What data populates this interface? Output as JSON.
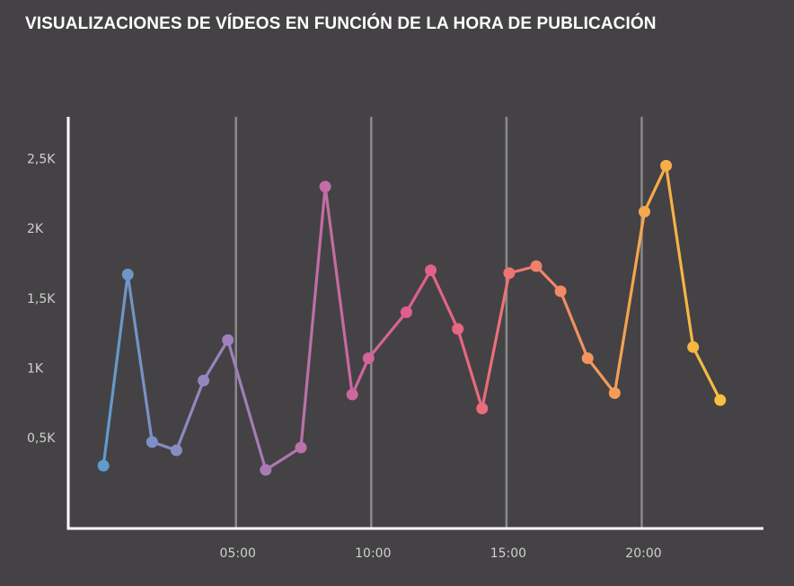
{
  "chart_data": {
    "type": "line",
    "title": "VISUALIZACIONES DE VÍDEOS EN FUNCIÓN DE LA HORA DE PUBLICACIÓN",
    "xlabel": "",
    "ylabel": "",
    "x_tick_labels": [
      {
        "label": "05:00",
        "value": 5
      },
      {
        "label": "10:00",
        "value": 10
      },
      {
        "label": "15:00",
        "value": 15
      },
      {
        "label": "20:00",
        "value": 20
      }
    ],
    "y_tick_labels": [
      {
        "label": "0,5K",
        "value": 500
      },
      {
        "label": "1K",
        "value": 1000
      },
      {
        "label": "1,5K",
        "value": 1500
      },
      {
        "label": "2K",
        "value": 2000
      },
      {
        "label": "2,5K",
        "value": 2500
      }
    ],
    "xlim": [
      -1.2,
      24.5
    ],
    "ylim": [
      -150,
      2800
    ],
    "x": [
      0.1,
      1.0,
      1.9,
      2.8,
      3.8,
      4.7,
      6.1,
      7.4,
      8.3,
      9.3,
      9.9,
      11.3,
      12.2,
      13.2,
      14.1,
      15.1,
      16.1,
      17.0,
      18.0,
      19.0,
      20.1,
      20.9,
      21.9,
      22.9
    ],
    "values": [
      300,
      1670,
      470,
      410,
      910,
      1200,
      270,
      430,
      2300,
      810,
      1070,
      1400,
      1700,
      1280,
      710,
      1680,
      1730,
      1550,
      1070,
      820,
      2120,
      2450,
      1150,
      770
    ],
    "vertical_lines_at": [
      5,
      10,
      15,
      20
    ],
    "grid": false,
    "colors": {
      "background": "#444244",
      "axes": "#ffffff",
      "vlines": "#8a898b",
      "gradient": [
        "#5f9bcc",
        "#8d8ac2",
        "#a67cb5",
        "#c76aa3",
        "#e05e8e",
        "#eb6c7a",
        "#f28c65",
        "#f6a74d",
        "#f6c040"
      ]
    }
  }
}
